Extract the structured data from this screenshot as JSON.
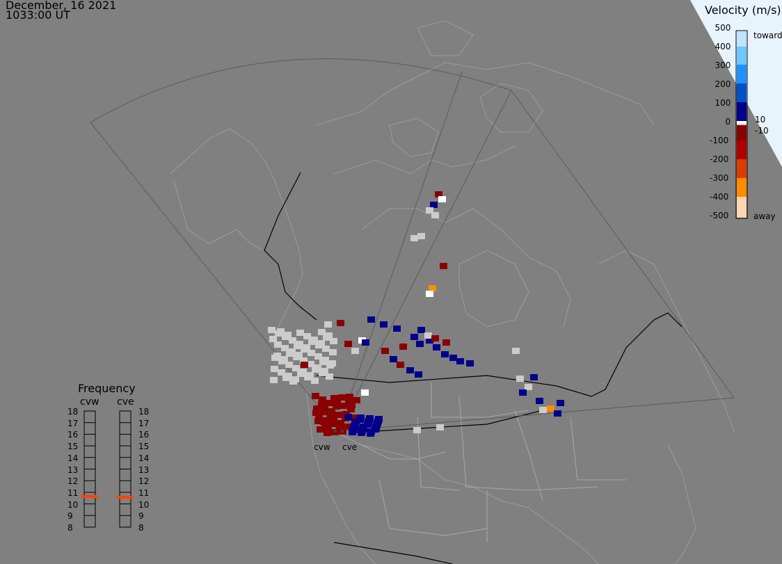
{
  "header": {
    "date": "December, 16 2021",
    "time": "1033:00 UT"
  },
  "colorbar": {
    "title": "Velocity (m/s)",
    "ticks": [
      "500",
      "400",
      "300",
      "200",
      "100",
      "0",
      "-100",
      "-200",
      "-300",
      "-400",
      "-500"
    ],
    "toward_label": "toward",
    "away_label": "away",
    "small_pos": "10",
    "small_neg": "-10"
  },
  "frequency": {
    "title": "Frequency",
    "radars": [
      {
        "label": "cvw",
        "selected_mhz": 10.8
      },
      {
        "label": "cve",
        "selected_mhz": 10.8
      }
    ],
    "ticks": [
      "18",
      "17",
      "16",
      "15",
      "14",
      "13",
      "12",
      "11",
      "10",
      "9",
      "8"
    ]
  },
  "radar_sites": [
    "cvw",
    "cve"
  ],
  "colors": {
    "background": "#808080",
    "land_outline": "#9c9c9c",
    "border": "#000000",
    "toward_dark": "#00008b",
    "toward_light": "#bfe4ff",
    "away_dark": "#8b0000",
    "away_light": "#ffd6b0",
    "ground_scatter": "#cccccc",
    "selected_freq": "#ff4500"
  }
}
